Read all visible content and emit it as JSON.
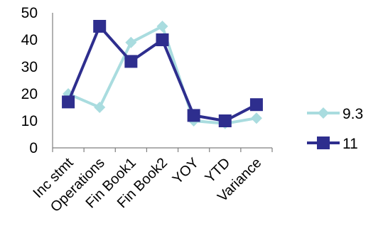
{
  "chart_data": {
    "type": "line",
    "categories": [
      "Inc stmt",
      "Operations",
      "Fin Book1",
      "Fin Book2",
      "YOY",
      "YTD",
      "Variance"
    ],
    "ylim": [
      0,
      50
    ],
    "yticks": [
      0,
      10,
      20,
      30,
      40,
      50
    ],
    "grid": false,
    "legend_position": "right",
    "series": [
      {
        "name": "9.3",
        "values": [
          20,
          15,
          39,
          45,
          10,
          9,
          11
        ],
        "color": "#a9dcdf",
        "marker": "diamond"
      },
      {
        "name": "11",
        "values": [
          17,
          45,
          32,
          40,
          12,
          10,
          16
        ],
        "color": "#2e2e8e",
        "marker": "square"
      }
    ]
  }
}
